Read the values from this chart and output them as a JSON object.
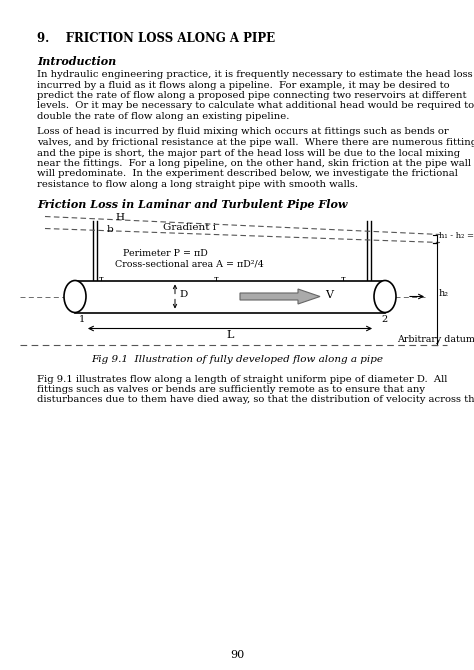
{
  "title": "9.    FRICTION LOSS ALONG A PIPE",
  "section_intro": "Introduction",
  "para1_lines": [
    "In hydraulic engineering practice, it is frequently necessary to estimate the head loss",
    "incurred by a fluid as it flows along a pipeline.  For example, it may be desired to",
    "predict the rate of flow along a proposed pipe connecting two reservoirs at different",
    "levels.  Or it may be necessary to calculate what additional head would be required to",
    "double the rate of flow along an existing pipeline."
  ],
  "para2_lines": [
    "Loss of head is incurred by fluid mixing which occurs at fittings such as bends or",
    "valves, and by frictional resistance at the pipe wall.  Where there are numerous fittings",
    "and the pipe is short, the major part of the head loss will be due to the local mixing",
    "near the fittings.  For a long pipeline, on the other hand, skin friction at the pipe wall",
    "will predominate.  In the experiment described below, we investigate the frictional",
    "resistance to flow along a long straight pipe with smooth walls."
  ],
  "friction_heading": "Friction Loss in Laminar and Turbulent Pipe Flow",
  "fig_caption": "Fig 9.1  Illustration of fully developed flow along a pipe",
  "para3_lines": [
    "Fig 9.1 illustrates flow along a length of straight uniform pipe of diameter D.  All",
    "fittings such as valves or bends are sufficiently remote as to ensure that any",
    "disturbances due to them have died away, so that the distribution of velocity across the"
  ],
  "page_num": "90",
  "bg_color": "#ffffff"
}
